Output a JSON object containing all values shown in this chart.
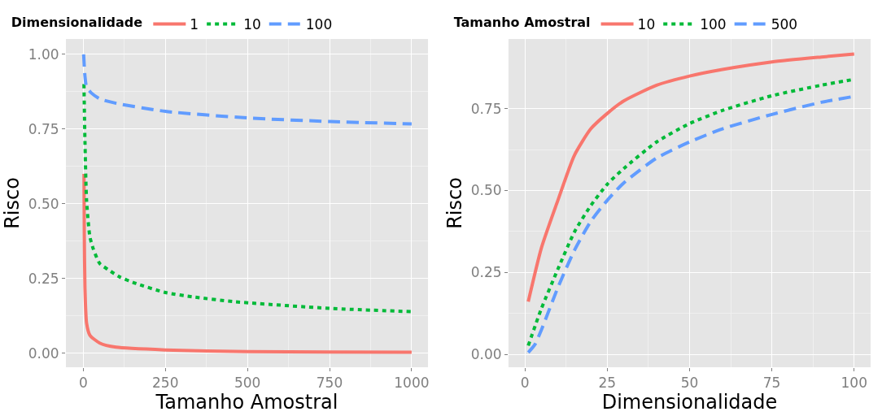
{
  "chart_data": [
    {
      "type": "line",
      "xlabel": "Tamanho Amostral",
      "ylabel": "Risco",
      "legend_title": "Dimensionalidade",
      "legend": "top",
      "grid": true,
      "xlim": [
        -53,
        1050
      ],
      "ylim": [
        -0.047,
        1.051
      ],
      "xticks": [
        0,
        250,
        500,
        750,
        1000
      ],
      "yticks": [
        {
          "value": 0,
          "label": "0.00"
        },
        {
          "value": 0.25,
          "label": "0.25"
        },
        {
          "value": 0.5,
          "label": "0.50"
        },
        {
          "value": 0.75,
          "label": "0.75"
        },
        {
          "value": 1,
          "label": "1.00"
        }
      ],
      "series": [
        {
          "name": "1",
          "color": "#f8766d",
          "line_style": "solid",
          "x": [
            2,
            3,
            5,
            10,
            20,
            50,
            100,
            250,
            500,
            750,
            1000
          ],
          "values": [
            0.6,
            0.4,
            0.22,
            0.1,
            0.06,
            0.034,
            0.02,
            0.011,
            0.005,
            0.004,
            0.003
          ]
        },
        {
          "name": "10",
          "color": "#00ba38",
          "line_style": "dotted",
          "x": [
            2,
            5,
            10,
            20,
            30,
            50,
            75,
            111,
            161,
            250,
            337,
            463,
            750,
            1000
          ],
          "values": [
            0.9,
            0.71,
            0.51,
            0.39,
            0.35,
            0.3,
            0.28,
            0.255,
            0.233,
            0.203,
            0.188,
            0.172,
            0.15,
            0.139
          ]
        },
        {
          "name": "100",
          "color": "#619cff",
          "line_style": "dashed",
          "x": [
            1,
            5,
            10,
            25,
            50,
            100,
            250,
            500,
            750,
            1000
          ],
          "values": [
            1.0,
            0.927,
            0.89,
            0.87,
            0.851,
            0.836,
            0.809,
            0.787,
            0.775,
            0.767
          ]
        }
      ]
    },
    {
      "type": "line",
      "xlabel": "Dimensionalidade",
      "ylabel": "Risco",
      "legend_title": "Tamanho Amostral",
      "legend": "top",
      "grid": true,
      "xlim": [
        -5,
        105
      ],
      "ylim": [
        -0.039,
        0.962
      ],
      "xticks": [
        0,
        25,
        50,
        75,
        100
      ],
      "yticks": [
        {
          "value": 0,
          "label": "0.00"
        },
        {
          "value": 0.25,
          "label": "0.25"
        },
        {
          "value": 0.5,
          "label": "0.50"
        },
        {
          "value": 0.75,
          "label": "0.75"
        }
      ],
      "series": [
        {
          "name": "10",
          "color": "#f8766d",
          "line_style": "solid",
          "x": [
            1,
            5,
            10,
            15,
            20,
            25,
            30,
            40,
            50,
            60,
            75,
            90,
            100
          ],
          "values": [
            0.161,
            0.325,
            0.47,
            0.607,
            0.688,
            0.735,
            0.773,
            0.821,
            0.849,
            0.869,
            0.892,
            0.907,
            0.916
          ]
        },
        {
          "name": "100",
          "color": "#00ba38",
          "line_style": "dotted",
          "x": [
            1,
            5,
            10,
            15,
            20,
            25,
            30,
            40,
            50,
            60,
            75,
            90,
            100
          ],
          "values": [
            0.027,
            0.14,
            0.26,
            0.373,
            0.454,
            0.519,
            0.567,
            0.648,
            0.704,
            0.744,
            0.789,
            0.821,
            0.839
          ]
        },
        {
          "name": "500",
          "color": "#619cff",
          "line_style": "dashed",
          "x": [
            1,
            3,
            5,
            10,
            15,
            20,
            25,
            30,
            40,
            50,
            60,
            75,
            90,
            100
          ],
          "values": [
            0.006,
            0.03,
            0.075,
            0.204,
            0.317,
            0.406,
            0.47,
            0.523,
            0.599,
            0.648,
            0.688,
            0.732,
            0.769,
            0.787
          ]
        }
      ]
    }
  ]
}
